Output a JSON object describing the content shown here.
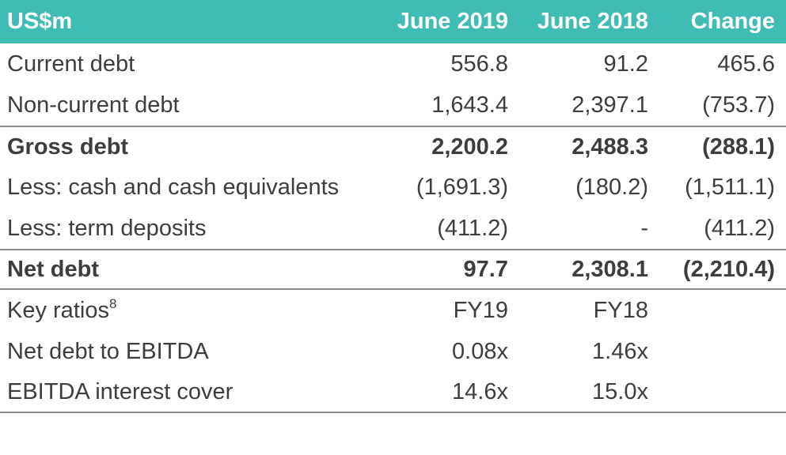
{
  "header": {
    "label": "US$m",
    "col_2019": "June 2019",
    "col_2018": "June 2018",
    "col_change": "Change"
  },
  "rows": [
    {
      "label": "Current debt",
      "v2019": "556.8",
      "v2018": "91.2",
      "change": "465.6"
    },
    {
      "label": "Non-current debt",
      "v2019": "1,643.4",
      "v2018": "2,397.1",
      "change": "(753.7)"
    },
    {
      "label": "Gross debt",
      "v2019": "2,200.2",
      "v2018": "2,488.3",
      "change": "(288.1)"
    },
    {
      "label": "Less: cash and cash equivalents",
      "v2019": "(1,691.3)",
      "v2018": "(180.2)",
      "change": "(1,511.1)"
    },
    {
      "label": "Less: term deposits",
      "v2019": "(411.2)",
      "v2018": "-",
      "change": "(411.2)"
    },
    {
      "label": "Net debt",
      "v2019": "97.7",
      "v2018": "2,308.1",
      "change": "(2,210.4)"
    }
  ],
  "ratios": {
    "label": "Key ratios",
    "footnote": "8",
    "y2019": "FY19",
    "y2018": "FY18",
    "items": [
      {
        "label": "Net debt to EBITDA",
        "v2019": "0.08x",
        "v2018": "1.46x"
      },
      {
        "label": "EBITDA interest cover",
        "v2019": "14.6x",
        "v2018": "15.0x"
      }
    ]
  }
}
